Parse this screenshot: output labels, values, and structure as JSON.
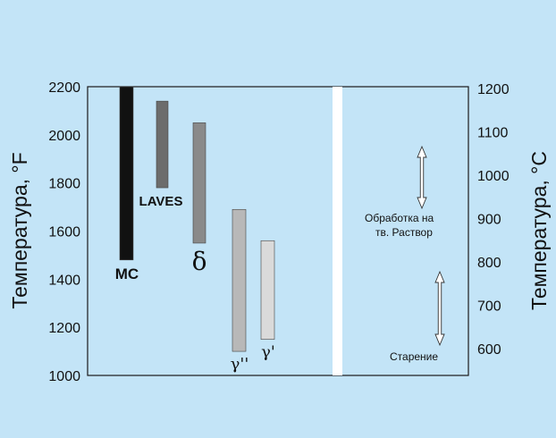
{
  "chart_data": {
    "type": "bar",
    "title": "",
    "y_left": {
      "label": "Температура, °F",
      "ylim": [
        1000,
        2200
      ],
      "ticks": [
        1000,
        1200,
        1400,
        1600,
        1800,
        2000,
        2200
      ]
    },
    "y_right": {
      "label": "Температура, °C",
      "ticks": [
        600,
        700,
        800,
        900,
        1000,
        1100,
        1200
      ]
    },
    "phases": [
      {
        "label": "MC",
        "low_F": 1480,
        "high_F": 2200,
        "color": "#111111",
        "label_style": "bold"
      },
      {
        "label": "LAVES",
        "low_F": 1780,
        "high_F": 2140,
        "color": "#6c6c6c",
        "label_style": "bold"
      },
      {
        "label": "δ",
        "low_F": 1550,
        "high_F": 2050,
        "color": "#8a8a8a",
        "label_style": "greek"
      },
      {
        "label": "γ''",
        "low_F": 1100,
        "high_F": 1690,
        "color": "#b8b8b8",
        "label_style": "greek"
      },
      {
        "label": "γ'",
        "low_F": 1150,
        "high_F": 1560,
        "color": "#dadada",
        "label_style": "greek"
      }
    ],
    "annotations": [
      {
        "text_lines": [
          "Обработка на",
          "тв. Раствор"
        ],
        "arrow_range_C": [
          1040,
          1100
        ]
      },
      {
        "text_lines": [
          "Старение"
        ],
        "arrow_range_C": [
          620,
          790
        ]
      }
    ]
  }
}
